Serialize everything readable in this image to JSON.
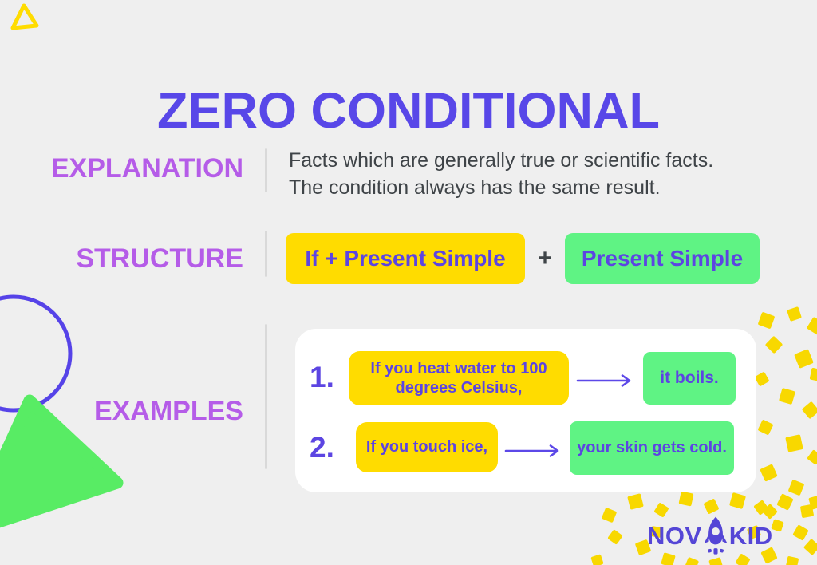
{
  "theme": {
    "background": "#efefef",
    "title_color": "#5847e8",
    "label_color": "#b55ce8",
    "text_color": "#3f4448",
    "yellow": "#ffdc00",
    "green_box": "#5ff384",
    "green_shape": "#58ec64",
    "box_text_color": "#5c45e2",
    "arrow_color": "#5c48e8",
    "divider_color": "#d9d9d9",
    "card_color": "#ffffff",
    "logo_color": "#5546d6",
    "confetti_color": "#f8d800",
    "circle_color": "#5643e8"
  },
  "title": "ZERO CONDITIONAL",
  "sections": {
    "explanation": {
      "label": "EXPLANATION",
      "text_line1": "Facts which are generally true or scientific facts.",
      "text_line2": "The condition always has the same result."
    },
    "structure": {
      "label": "STRUCTURE",
      "if_box": "If + Present Simple",
      "plus": "+",
      "result_box": "Present Simple"
    },
    "examples": {
      "label": "EXAMPLES",
      "items": [
        {
          "number": "1.",
          "condition": "If you heat water to 100 degrees Celsius,",
          "result": "it boils."
        },
        {
          "number": "2.",
          "condition": "If you touch ice,",
          "result": "your skin gets cold."
        }
      ]
    }
  },
  "logo": {
    "name": "NOVAKID",
    "text_left": "NOV",
    "text_right": "KID"
  }
}
